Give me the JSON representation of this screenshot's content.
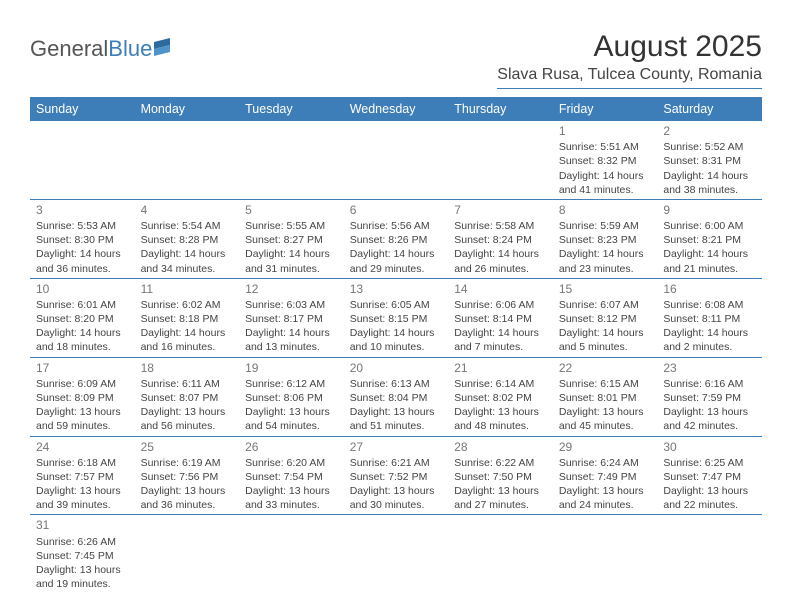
{
  "logo": {
    "general": "General",
    "blue": "Blue"
  },
  "title": "August 2025",
  "location": "Slava Rusa, Tulcea County, Romania",
  "columns": [
    "Sunday",
    "Monday",
    "Tuesday",
    "Wednesday",
    "Thursday",
    "Friday",
    "Saturday"
  ],
  "colors": {
    "header_bg": "#3d7db8",
    "header_fg": "#ffffff",
    "border": "#3d7db8",
    "logo_gray": "#555555",
    "logo_blue": "#3d7db8"
  },
  "weeks": [
    [
      null,
      null,
      null,
      null,
      null,
      {
        "n": "1",
        "sr": "Sunrise: 5:51 AM",
        "ss": "Sunset: 8:32 PM",
        "dl": "Daylight: 14 hours and 41 minutes."
      },
      {
        "n": "2",
        "sr": "Sunrise: 5:52 AM",
        "ss": "Sunset: 8:31 PM",
        "dl": "Daylight: 14 hours and 38 minutes."
      }
    ],
    [
      {
        "n": "3",
        "sr": "Sunrise: 5:53 AM",
        "ss": "Sunset: 8:30 PM",
        "dl": "Daylight: 14 hours and 36 minutes."
      },
      {
        "n": "4",
        "sr": "Sunrise: 5:54 AM",
        "ss": "Sunset: 8:28 PM",
        "dl": "Daylight: 14 hours and 34 minutes."
      },
      {
        "n": "5",
        "sr": "Sunrise: 5:55 AM",
        "ss": "Sunset: 8:27 PM",
        "dl": "Daylight: 14 hours and 31 minutes."
      },
      {
        "n": "6",
        "sr": "Sunrise: 5:56 AM",
        "ss": "Sunset: 8:26 PM",
        "dl": "Daylight: 14 hours and 29 minutes."
      },
      {
        "n": "7",
        "sr": "Sunrise: 5:58 AM",
        "ss": "Sunset: 8:24 PM",
        "dl": "Daylight: 14 hours and 26 minutes."
      },
      {
        "n": "8",
        "sr": "Sunrise: 5:59 AM",
        "ss": "Sunset: 8:23 PM",
        "dl": "Daylight: 14 hours and 23 minutes."
      },
      {
        "n": "9",
        "sr": "Sunrise: 6:00 AM",
        "ss": "Sunset: 8:21 PM",
        "dl": "Daylight: 14 hours and 21 minutes."
      }
    ],
    [
      {
        "n": "10",
        "sr": "Sunrise: 6:01 AM",
        "ss": "Sunset: 8:20 PM",
        "dl": "Daylight: 14 hours and 18 minutes."
      },
      {
        "n": "11",
        "sr": "Sunrise: 6:02 AM",
        "ss": "Sunset: 8:18 PM",
        "dl": "Daylight: 14 hours and 16 minutes."
      },
      {
        "n": "12",
        "sr": "Sunrise: 6:03 AM",
        "ss": "Sunset: 8:17 PM",
        "dl": "Daylight: 14 hours and 13 minutes."
      },
      {
        "n": "13",
        "sr": "Sunrise: 6:05 AM",
        "ss": "Sunset: 8:15 PM",
        "dl": "Daylight: 14 hours and 10 minutes."
      },
      {
        "n": "14",
        "sr": "Sunrise: 6:06 AM",
        "ss": "Sunset: 8:14 PM",
        "dl": "Daylight: 14 hours and 7 minutes."
      },
      {
        "n": "15",
        "sr": "Sunrise: 6:07 AM",
        "ss": "Sunset: 8:12 PM",
        "dl": "Daylight: 14 hours and 5 minutes."
      },
      {
        "n": "16",
        "sr": "Sunrise: 6:08 AM",
        "ss": "Sunset: 8:11 PM",
        "dl": "Daylight: 14 hours and 2 minutes."
      }
    ],
    [
      {
        "n": "17",
        "sr": "Sunrise: 6:09 AM",
        "ss": "Sunset: 8:09 PM",
        "dl": "Daylight: 13 hours and 59 minutes."
      },
      {
        "n": "18",
        "sr": "Sunrise: 6:11 AM",
        "ss": "Sunset: 8:07 PM",
        "dl": "Daylight: 13 hours and 56 minutes."
      },
      {
        "n": "19",
        "sr": "Sunrise: 6:12 AM",
        "ss": "Sunset: 8:06 PM",
        "dl": "Daylight: 13 hours and 54 minutes."
      },
      {
        "n": "20",
        "sr": "Sunrise: 6:13 AM",
        "ss": "Sunset: 8:04 PM",
        "dl": "Daylight: 13 hours and 51 minutes."
      },
      {
        "n": "21",
        "sr": "Sunrise: 6:14 AM",
        "ss": "Sunset: 8:02 PM",
        "dl": "Daylight: 13 hours and 48 minutes."
      },
      {
        "n": "22",
        "sr": "Sunrise: 6:15 AM",
        "ss": "Sunset: 8:01 PM",
        "dl": "Daylight: 13 hours and 45 minutes."
      },
      {
        "n": "23",
        "sr": "Sunrise: 6:16 AM",
        "ss": "Sunset: 7:59 PM",
        "dl": "Daylight: 13 hours and 42 minutes."
      }
    ],
    [
      {
        "n": "24",
        "sr": "Sunrise: 6:18 AM",
        "ss": "Sunset: 7:57 PM",
        "dl": "Daylight: 13 hours and 39 minutes."
      },
      {
        "n": "25",
        "sr": "Sunrise: 6:19 AM",
        "ss": "Sunset: 7:56 PM",
        "dl": "Daylight: 13 hours and 36 minutes."
      },
      {
        "n": "26",
        "sr": "Sunrise: 6:20 AM",
        "ss": "Sunset: 7:54 PM",
        "dl": "Daylight: 13 hours and 33 minutes."
      },
      {
        "n": "27",
        "sr": "Sunrise: 6:21 AM",
        "ss": "Sunset: 7:52 PM",
        "dl": "Daylight: 13 hours and 30 minutes."
      },
      {
        "n": "28",
        "sr": "Sunrise: 6:22 AM",
        "ss": "Sunset: 7:50 PM",
        "dl": "Daylight: 13 hours and 27 minutes."
      },
      {
        "n": "29",
        "sr": "Sunrise: 6:24 AM",
        "ss": "Sunset: 7:49 PM",
        "dl": "Daylight: 13 hours and 24 minutes."
      },
      {
        "n": "30",
        "sr": "Sunrise: 6:25 AM",
        "ss": "Sunset: 7:47 PM",
        "dl": "Daylight: 13 hours and 22 minutes."
      }
    ],
    [
      {
        "n": "31",
        "sr": "Sunrise: 6:26 AM",
        "ss": "Sunset: 7:45 PM",
        "dl": "Daylight: 13 hours and 19 minutes."
      },
      null,
      null,
      null,
      null,
      null,
      null
    ]
  ]
}
